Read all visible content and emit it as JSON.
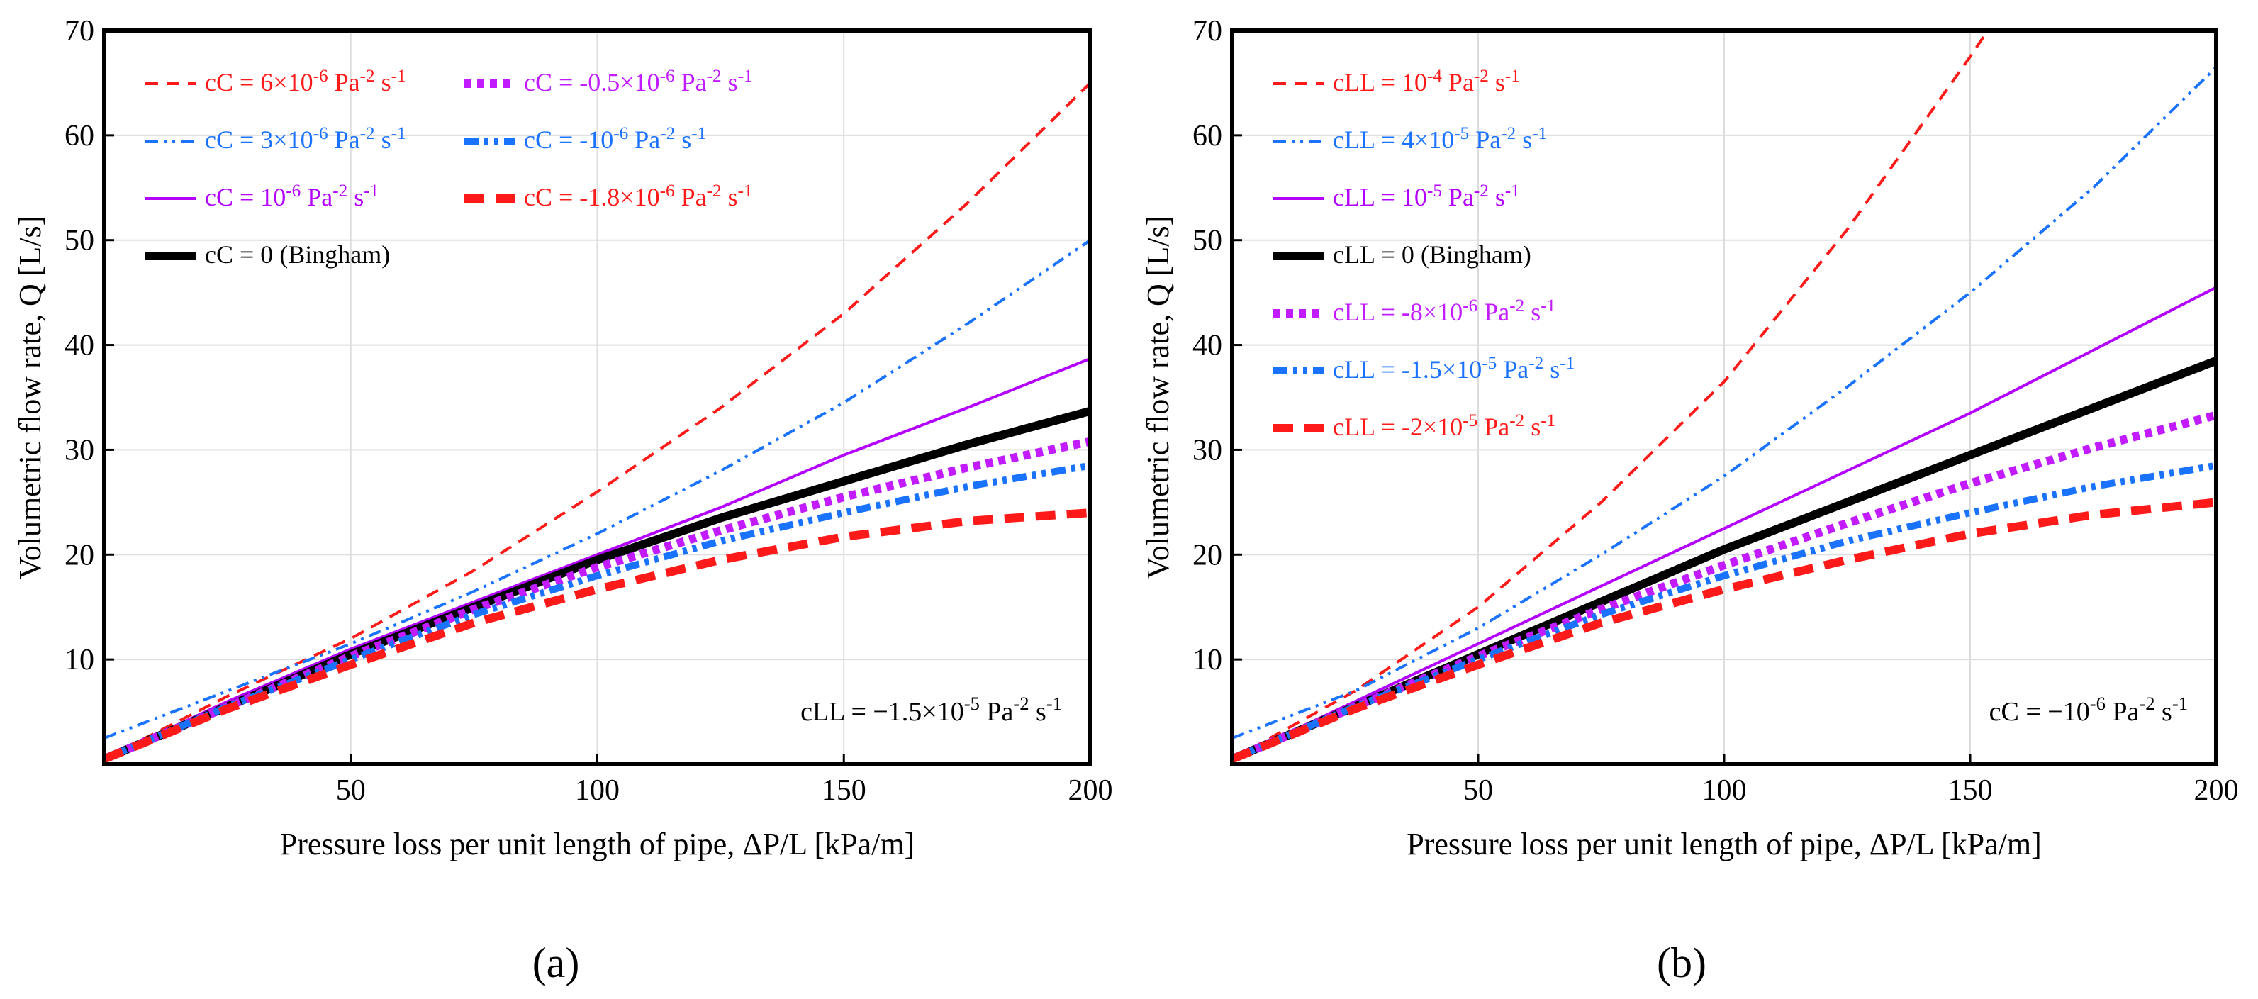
{
  "chart_data": [
    {
      "type": "line",
      "panel_label": "(a)",
      "xlabel": "Pressure loss per unit length of pipe, ΔP/L [kPa/m]",
      "ylabel": "Volumetric flow rate, Q [L/s]",
      "xlim": [
        0,
        200
      ],
      "ylim": [
        0,
        70
      ],
      "xticks": [
        50,
        100,
        150,
        200
      ],
      "yticks": [
        10,
        20,
        30,
        40,
        50,
        60,
        70
      ],
      "grid": true,
      "legend_position": "top-left",
      "annotation": "cLL = −1.5×10⁻⁵ Pa⁻² s⁻¹",
      "series": [
        {
          "name": "cC = 6×10⁻⁶ Pa⁻² s⁻¹",
          "color": "#ff1a1a",
          "dash": "dashed-thin",
          "x": [
            0,
            25,
            50,
            75,
            100,
            125,
            150,
            175,
            200
          ],
          "y": [
            0.5,
            6.5,
            12,
            18.5,
            26,
            34,
            43,
            53.5,
            65
          ]
        },
        {
          "name": "cC = 3×10⁻⁶ Pa⁻² s⁻¹",
          "color": "#1a73ff",
          "dash": "dashdotdot-thin",
          "x": [
            0,
            25,
            50,
            75,
            100,
            125,
            150,
            175,
            200
          ],
          "y": [
            2.5,
            7,
            11.5,
            16.5,
            22,
            28,
            34.5,
            42,
            50
          ]
        },
        {
          "name": "cC = 10⁻⁶ Pa⁻² s⁻¹",
          "color": "#b300ff",
          "dash": "solid-thin",
          "x": [
            0,
            25,
            50,
            75,
            100,
            125,
            150,
            175,
            200
          ],
          "y": [
            0.5,
            6,
            11,
            15.5,
            20,
            24.5,
            29.5,
            34,
            38.7
          ]
        },
        {
          "name": "cC = 0 (Bingham)",
          "color": "#000000",
          "dash": "solid-thick",
          "x": [
            0,
            25,
            50,
            75,
            100,
            125,
            150,
            175,
            200
          ],
          "y": [
            0.5,
            5.5,
            10.5,
            15,
            19.5,
            23.5,
            27,
            30.5,
            33.7
          ]
        },
        {
          "name": "cC = -0.5×10⁻⁶ Pa⁻² s⁻¹",
          "color": "#c21bff",
          "dash": "dotted-thick",
          "x": [
            0,
            25,
            50,
            75,
            100,
            125,
            150,
            175,
            200
          ],
          "y": [
            0.5,
            5.5,
            10.3,
            14.8,
            18.8,
            22.3,
            25.5,
            28.3,
            30.8
          ]
        },
        {
          "name": "cC = -10⁻⁶ Pa⁻² s⁻¹",
          "color": "#1a73ff",
          "dash": "dashdotdot-thick",
          "x": [
            0,
            25,
            50,
            75,
            100,
            125,
            150,
            175,
            200
          ],
          "y": [
            0.5,
            5.5,
            10,
            14.3,
            18,
            21.3,
            24,
            26.5,
            28.5
          ]
        },
        {
          "name": "cC = -1.8×10⁻⁶ Pa⁻² s⁻¹",
          "color": "#ff1a1a",
          "dash": "dashed-thick",
          "x": [
            0,
            25,
            50,
            75,
            100,
            125,
            150,
            175,
            200
          ],
          "y": [
            0.5,
            5.3,
            9.5,
            13.5,
            16.7,
            19.5,
            21.7,
            23.2,
            24
          ]
        }
      ]
    },
    {
      "type": "line",
      "panel_label": "(b)",
      "xlabel": "Pressure loss per unit length of pipe, ΔP/L [kPa/m]",
      "ylabel": "Volumetric flow rate, Q [L/s]",
      "xlim": [
        0,
        200
      ],
      "ylim": [
        0,
        70
      ],
      "xticks": [
        50,
        100,
        150,
        200
      ],
      "yticks": [
        10,
        20,
        30,
        40,
        50,
        60,
        70
      ],
      "grid": true,
      "legend_position": "top-left",
      "annotation": "cC = −10⁻⁶ Pa⁻² s⁻¹",
      "series": [
        {
          "name": "cLL = 10⁻⁴ Pa⁻² s⁻¹",
          "color": "#ff1a1a",
          "dash": "dashed-thin",
          "x": [
            0,
            25,
            50,
            75,
            100,
            125,
            150,
            155
          ],
          "y": [
            0.5,
            7,
            15,
            25,
            36.5,
            51,
            67.5,
            71
          ]
        },
        {
          "name": "cLL = 4×10⁻⁵ Pa⁻² s⁻¹",
          "color": "#1a73ff",
          "dash": "dashdotdot-thin",
          "x": [
            0,
            25,
            50,
            75,
            100,
            125,
            150,
            175,
            200
          ],
          "y": [
            2.5,
            7,
            13,
            20,
            27.5,
            36,
            45,
            55,
            66.5
          ]
        },
        {
          "name": "cLL = 10⁻⁵ Pa⁻² s⁻¹",
          "color": "#b300ff",
          "dash": "solid-thin",
          "x": [
            0,
            25,
            50,
            75,
            100,
            125,
            150,
            175,
            200
          ],
          "y": [
            0.5,
            6,
            11.5,
            17,
            22.5,
            28,
            33.5,
            39.5,
            45.5
          ]
        },
        {
          "name": "cLL = 0 (Bingham)",
          "color": "#000000",
          "dash": "solid-thick",
          "x": [
            0,
            25,
            50,
            75,
            100,
            125,
            150,
            175,
            200
          ],
          "y": [
            0.5,
            5.5,
            10.5,
            15.5,
            20.5,
            25,
            29.5,
            34,
            38.5
          ]
        },
        {
          "name": "cLL = -8×10⁻⁶ Pa⁻² s⁻¹",
          "color": "#c21bff",
          "dash": "dotted-thick",
          "x": [
            0,
            25,
            50,
            75,
            100,
            125,
            150,
            175,
            200
          ],
          "y": [
            0.5,
            5.5,
            10.3,
            14.8,
            19,
            23,
            26.8,
            30.2,
            33.3
          ]
        },
        {
          "name": "cLL = -1.5×10⁻⁵ Pa⁻² s⁻¹",
          "color": "#1a73ff",
          "dash": "dashdotdot-thick",
          "x": [
            0,
            25,
            50,
            75,
            100,
            125,
            150,
            175,
            200
          ],
          "y": [
            0.5,
            5.5,
            10,
            14.3,
            18,
            21.3,
            24,
            26.5,
            28.5
          ]
        },
        {
          "name": "cLL = -2×10⁻⁵ Pa⁻² s⁻¹",
          "color": "#ff1a1a",
          "dash": "dashed-thick",
          "x": [
            0,
            25,
            50,
            75,
            100,
            125,
            150,
            175,
            200
          ],
          "y": [
            0.5,
            5.3,
            9.5,
            13.5,
            16.7,
            19.5,
            22,
            23.8,
            25
          ]
        }
      ]
    }
  ]
}
